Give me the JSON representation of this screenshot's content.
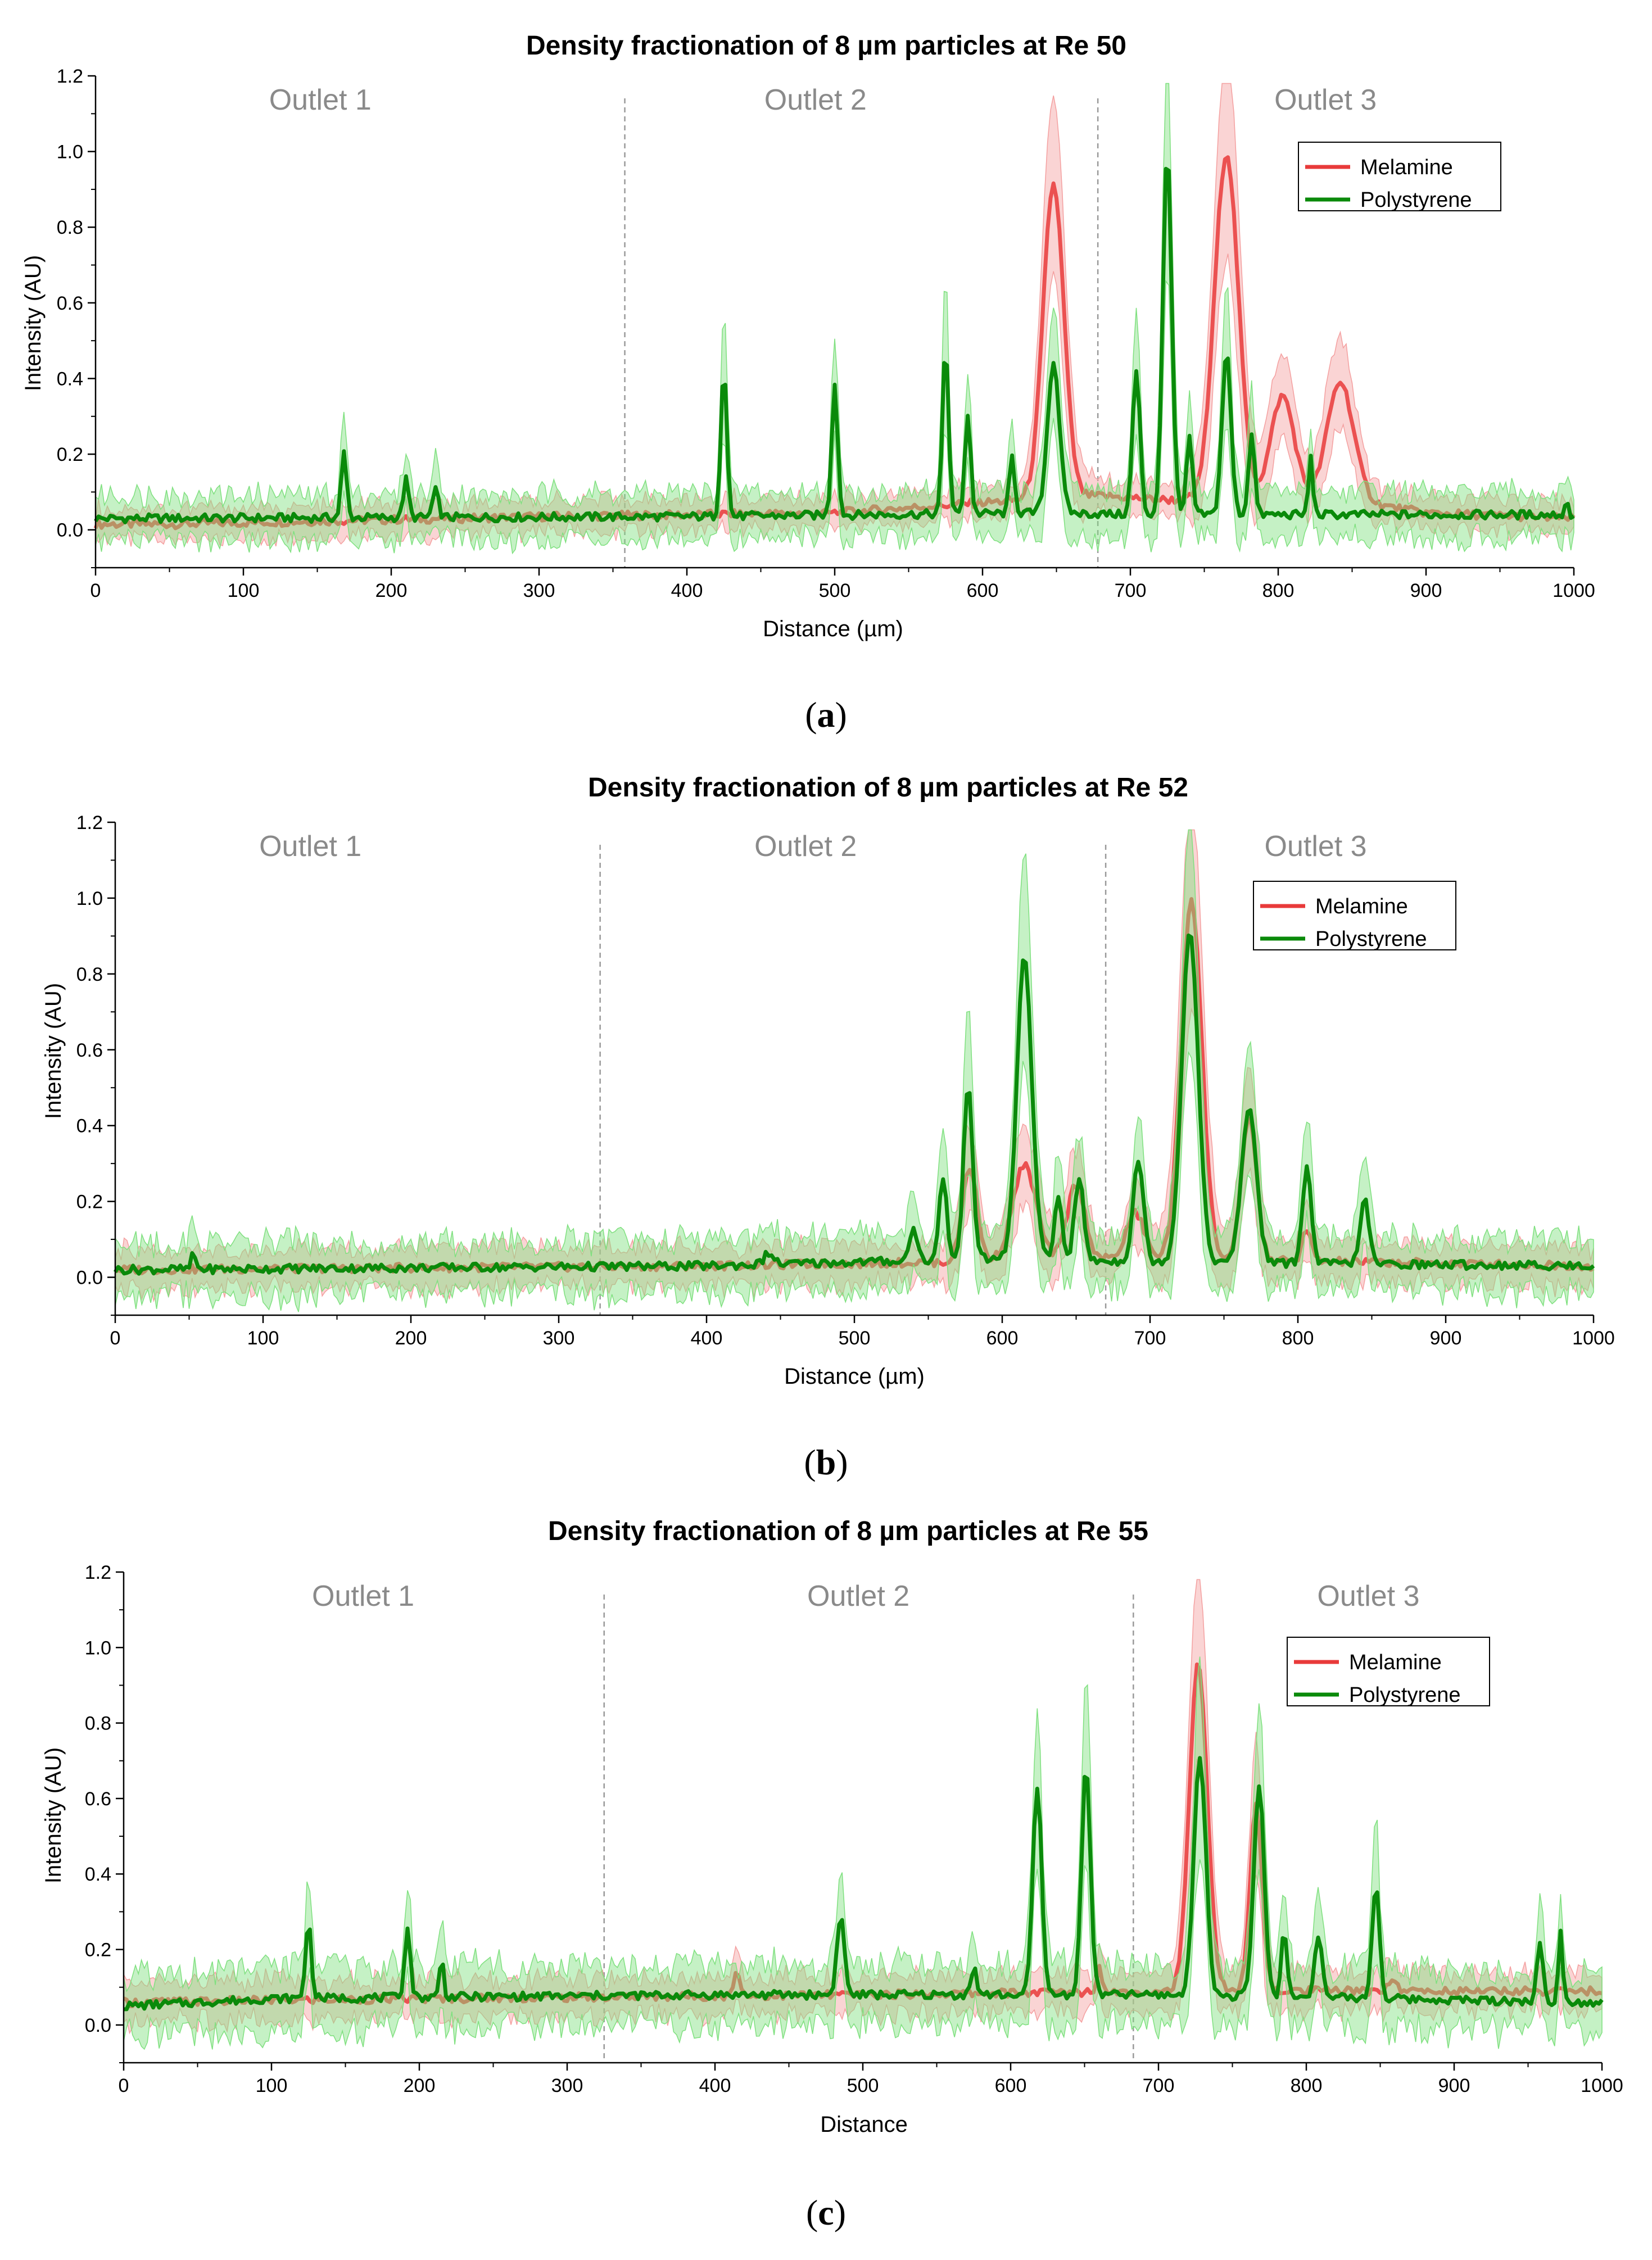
{
  "colors": {
    "melamine": "#e83a3a",
    "polystyrene": "#0a8a0a",
    "melamine_band": "#f4a0a0",
    "polystyrene_band": "#7fe07f",
    "divider": "#9a9a9a",
    "region_text": "#8a8a8a"
  },
  "chart_data": [
    {
      "type": "line",
      "panel": "a",
      "caption_open": "(",
      "caption_letter": "a",
      "caption_close": ")",
      "title": "Density fractionation of 8 µm particles at Re 50",
      "xlabel": "Distance (µm)",
      "ylabel": "Intensity (AU)",
      "xlim": [
        0,
        1000
      ],
      "ylim": [
        -0.1,
        1.2
      ],
      "xticks": [
        0,
        100,
        200,
        300,
        400,
        500,
        600,
        700,
        800,
        900,
        1000
      ],
      "yticks": [
        0.0,
        0.2,
        0.4,
        0.6,
        0.8,
        1.0,
        1.2
      ],
      "ytick_labels": [
        "0.0",
        "0.2",
        "0.4",
        "0.6",
        "0.8",
        "1.0",
        "1.2"
      ],
      "regions": [
        {
          "label": "Outlet 1",
          "center": 152
        },
        {
          "label": "Outlet 2",
          "center": 487
        },
        {
          "label": "Outlet 3",
          "center": 832
        }
      ],
      "dividers": [
        358,
        678
      ],
      "legend": {
        "position": "top-right",
        "entries": [
          "Melamine",
          "Polystyrene"
        ]
      },
      "series": [
        {
          "name": "Melamine",
          "baseline": [
            [
              0,
              0.015
            ],
            [
              50,
              0.015
            ],
            [
              300,
              0.035
            ],
            [
              500,
              0.045
            ],
            [
              630,
              0.08
            ],
            [
              680,
              0.09
            ],
            [
              720,
              0.08
            ],
            [
              860,
              0.07
            ],
            [
              900,
              0.045
            ],
            [
              1000,
              0.03
            ]
          ],
          "peaks": [
            [
              648,
              0.83,
              7
            ],
            [
              765,
              0.92,
              8
            ],
            [
              803,
              0.28,
              8
            ],
            [
              842,
              0.32,
              9
            ]
          ],
          "band": 0.04
        },
        {
          "name": "Polystyrene",
          "baseline": [
            [
              0,
              0.03
            ],
            [
              400,
              0.035
            ],
            [
              650,
              0.045
            ],
            [
              700,
              0.04
            ],
            [
              1000,
              0.04
            ]
          ],
          "peaks": [
            [
              168,
              0.17,
              1.8
            ],
            [
              210,
              0.1,
              1.8
            ],
            [
              230,
              0.07,
              2
            ],
            [
              425,
              0.4,
              2
            ],
            [
              500,
              0.35,
              2
            ],
            [
              575,
              0.45,
              2
            ],
            [
              590,
              0.26,
              2
            ],
            [
              620,
              0.15,
              1.8
            ],
            [
              648,
              0.4,
              4
            ],
            [
              704,
              0.38,
              2.5
            ],
            [
              725,
              0.96,
              3
            ],
            [
              740,
              0.2,
              2
            ],
            [
              765,
              0.43,
              3
            ],
            [
              782,
              0.22,
              2
            ],
            [
              822,
              0.15,
              1.5
            ],
            [
              995,
              0.04,
              1
            ]
          ],
          "band": 0.06
        }
      ]
    },
    {
      "type": "line",
      "panel": "b",
      "caption_open": "(",
      "caption_letter": "b",
      "caption_close": ")",
      "title": "Density fractionation of 8 µm particles at Re 52",
      "xlabel": "Distance (µm)",
      "ylabel": "Intensity (AU)",
      "xlim": [
        0,
        1000
      ],
      "ylim": [
        -0.1,
        1.2
      ],
      "xticks": [
        0,
        100,
        200,
        300,
        400,
        500,
        600,
        700,
        800,
        900,
        1000
      ],
      "yticks": [
        0.0,
        0.2,
        0.4,
        0.6,
        0.8,
        1.0,
        1.2
      ],
      "ytick_labels": [
        "0.0",
        "0.2",
        "0.4",
        "0.6",
        "0.8",
        "1.0",
        "1.2"
      ],
      "regions": [
        {
          "label": "Outlet 1",
          "center": 132
        },
        {
          "label": "Outlet 2",
          "center": 467
        },
        {
          "label": "Outlet 3",
          "center": 812
        }
      ],
      "dividers": [
        328,
        670
      ],
      "legend": {
        "position": "top-right",
        "entries": [
          "Melamine",
          "Polystyrene"
        ]
      },
      "series": [
        {
          "name": "Melamine",
          "baseline": [
            [
              0,
              0.02
            ],
            [
              400,
              0.03
            ],
            [
              560,
              0.04
            ],
            [
              700,
              0.05
            ],
            [
              1000,
              0.03
            ]
          ],
          "peaks": [
            [
              578,
              0.25,
              5
            ],
            [
              615,
              0.25,
              8
            ],
            [
              650,
              0.2,
              6
            ],
            [
              690,
              0.12,
              6
            ],
            [
              728,
              0.95,
              7
            ],
            [
              767,
              0.38,
              5
            ],
            [
              806,
              0.08,
              3
            ]
          ],
          "band": 0.05
        },
        {
          "name": "Polystyrene",
          "baseline": [
            [
              0,
              0.02
            ],
            [
              400,
              0.03
            ],
            [
              600,
              0.05
            ],
            [
              700,
              0.04
            ],
            [
              1000,
              0.03
            ]
          ],
          "peaks": [
            [
              53,
              0.04,
              1.5
            ],
            [
              442,
              0.03,
              3
            ],
            [
              540,
              0.09,
              2.5
            ],
            [
              560,
              0.22,
              2.5
            ],
            [
              577,
              0.47,
              3
            ],
            [
              615,
              0.8,
              5
            ],
            [
              638,
              0.17,
              2.5
            ],
            [
              652,
              0.22,
              3
            ],
            [
              692,
              0.27,
              3.5
            ],
            [
              727,
              0.88,
              5.5
            ],
            [
              767,
              0.41,
              5
            ],
            [
              806,
              0.25,
              3
            ],
            [
              845,
              0.17,
              3
            ]
          ],
          "band": 0.07
        }
      ]
    },
    {
      "type": "line",
      "panel": "c",
      "caption_open": "(",
      "caption_letter": "c",
      "caption_close": ")",
      "title": "Density fractionation of 8 µm particles at Re 55",
      "xlabel": "Distance",
      "ylabel": "Intensity (AU)",
      "xlim": [
        0,
        1000
      ],
      "ylim": [
        -0.1,
        1.2
      ],
      "xticks": [
        0,
        100,
        200,
        300,
        400,
        500,
        600,
        700,
        800,
        900,
        1000
      ],
      "yticks": [
        0.0,
        0.2,
        0.4,
        0.6,
        0.8,
        1.0,
        1.2
      ],
      "ytick_labels": [
        "0.0",
        "0.2",
        "0.4",
        "0.6",
        "0.8",
        "1.0",
        "1.2"
      ],
      "regions": [
        {
          "label": "Outlet 1",
          "center": 162
        },
        {
          "label": "Outlet 2",
          "center": 497
        },
        {
          "label": "Outlet 3",
          "center": 842
        }
      ],
      "dividers": [
        325,
        683
      ],
      "legend": {
        "position": "top-right",
        "entries": [
          "Melamine",
          "Polystyrene"
        ]
      },
      "series": [
        {
          "name": "Melamine",
          "baseline": [
            [
              0,
              0.06
            ],
            [
              200,
              0.07
            ],
            [
              500,
              0.08
            ],
            [
              700,
              0.09
            ],
            [
              1000,
              0.09
            ]
          ],
          "peaks": [
            [
              415,
              0.07,
              2
            ],
            [
              660,
              0.06,
              2
            ],
            [
              727,
              0.87,
              6
            ],
            [
              766,
              0.5,
              4
            ],
            [
              858,
              0.03,
              3
            ]
          ],
          "band": 0.05
        },
        {
          "name": "Polystyrene",
          "baseline": [
            [
              0,
              0.05
            ],
            [
              100,
              0.07
            ],
            [
              400,
              0.08
            ],
            [
              700,
              0.08
            ],
            [
              1000,
              0.06
            ]
          ],
          "peaks": [
            [
              125,
              0.2,
              2
            ],
            [
              192,
              0.18,
              2
            ],
            [
              215,
              0.1,
              1.5
            ],
            [
              485,
              0.21,
              2.5
            ],
            [
              575,
              0.07,
              2
            ],
            [
              618,
              0.55,
              3
            ],
            [
              651,
              0.6,
              3
            ],
            [
              728,
              0.64,
              4
            ],
            [
              768,
              0.56,
              3.5
            ],
            [
              785,
              0.17,
              2
            ],
            [
              808,
              0.17,
              2.5
            ],
            [
              847,
              0.3,
              2.5
            ],
            [
              958,
              0.15,
              2
            ],
            [
              972,
              0.19,
              1.5
            ]
          ],
          "band": 0.08
        }
      ]
    }
  ]
}
